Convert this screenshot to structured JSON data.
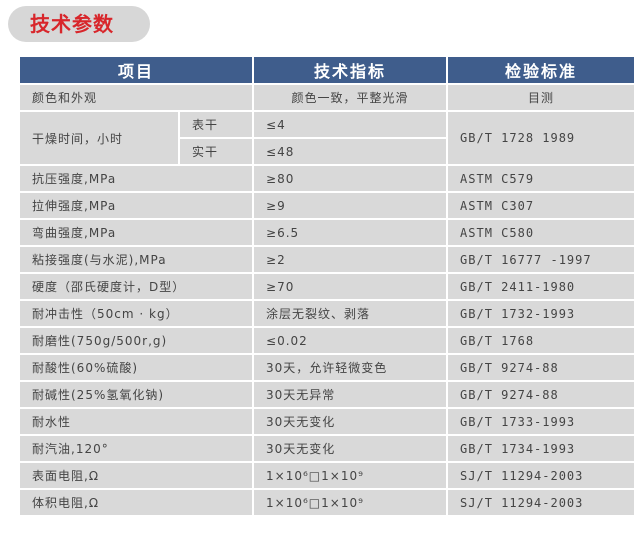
{
  "title": "技术参数",
  "headers": [
    "项目",
    "技术指标",
    "检验标准"
  ],
  "appearance": {
    "item": "颜色和外观",
    "spec": "颜色一致，平整光滑",
    "standard": "目测"
  },
  "drying": {
    "item": "干燥时间，小时",
    "sub": [
      {
        "label": "表干",
        "spec": "≤4"
      },
      {
        "label": "实干",
        "spec": "≤48"
      }
    ],
    "standard": "GB/T 1728 1989"
  },
  "rows": [
    {
      "item": "抗压强度,MPa",
      "spec": "≥80",
      "standard": "ASTM C579"
    },
    {
      "item": "拉伸强度,MPa",
      "spec": "≥9",
      "standard": "ASTM C307"
    },
    {
      "item": "弯曲强度,MPa",
      "spec": "≥6.5",
      "standard": "ASTM C580"
    },
    {
      "item": "粘接强度(与水泥),MPa",
      "spec": "≥2",
      "standard": "GB/T 16777 -1997"
    },
    {
      "item": "硬度（邵氏硬度计，D型）",
      "spec": "≥70",
      "standard": "GB/T 2411-1980"
    },
    {
      "item": "耐冲击性（50cm · kg）",
      "spec": "涂层无裂纹、剥落",
      "standard": "GB/T 1732-1993"
    },
    {
      "item": "耐磨性(750g/500r,g)",
      "spec": "≤0.02",
      "standard": "GB/T 1768"
    },
    {
      "item": "耐酸性(60%硫酸)",
      "spec": "30天，允许轻微变色",
      "standard": "GB/T 9274-88"
    },
    {
      "item": "耐碱性(25%氢氧化钠)",
      "spec": "30天无异常",
      "standard": "GB/T 9274-88"
    },
    {
      "item": "耐水性",
      "spec": "30天无变化",
      "standard": "GB/T 1733-1993"
    },
    {
      "item": "耐汽油,120°",
      "spec": "30天无变化",
      "standard": "GB/T 1734-1993"
    },
    {
      "item": "表面电阻,Ω",
      "spec": "1×10⁶□1×10⁹",
      "standard": "SJ/T 11294-2003"
    },
    {
      "item": "体积电阻,Ω",
      "spec": "1×10⁶□1×10⁹",
      "standard": "SJ/T 11294-2003"
    }
  ]
}
